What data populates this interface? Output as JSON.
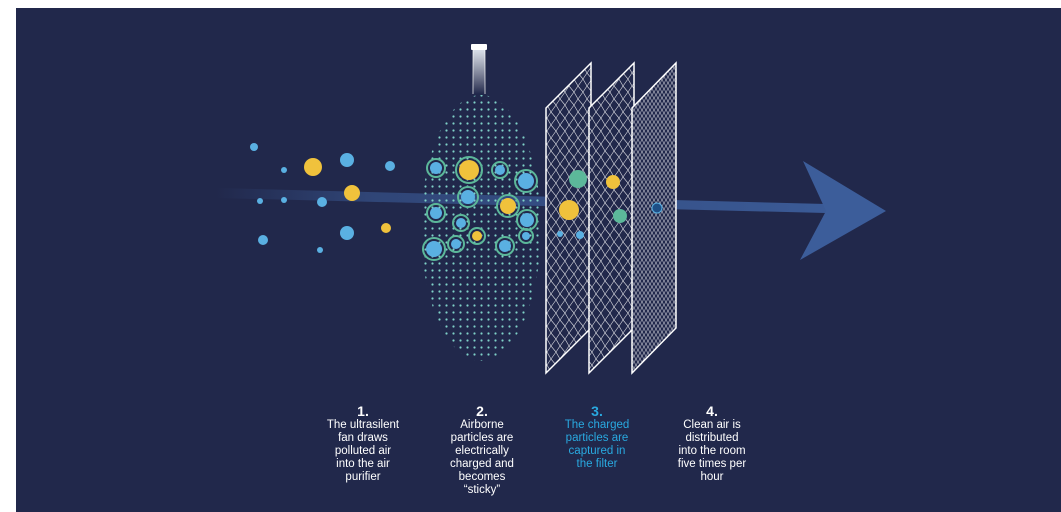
{
  "colors": {
    "background": "#21284b",
    "accent_blue": "#29a9e0",
    "particle_blue": "#5ab0e2",
    "particle_yellow": "#f0c23c",
    "particle_green": "#5cb89a",
    "arrow": "#3c5d9a"
  },
  "steps": [
    {
      "number": "1.",
      "text": "The ultrasilent\nfan draws\npolluted air\ninto the air\npurifier",
      "highlight": false
    },
    {
      "number": "2.",
      "text": "Airborne\nparticles are\nelectrically\ncharged and\nbecomes\n“sticky”",
      "highlight": false
    },
    {
      "number": "3.",
      "text": "The charged\nparticles are\ncaptured in\nthe filter",
      "highlight": true
    },
    {
      "number": "4.",
      "text": "Clean air is\ndistributed\ninto the room\nfive times per\nhour",
      "highlight": false
    }
  ]
}
